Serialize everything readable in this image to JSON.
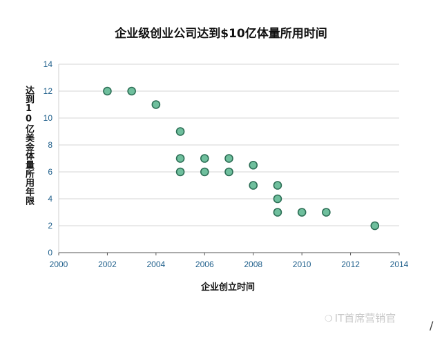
{
  "chart_data": {
    "type": "scatter",
    "title": "企业级创业公司达到$10亿体量所用时间",
    "xlabel": "企业创立时间",
    "ylabel": "达到10亿美金体量所用年限",
    "xlim": [
      2000,
      2014
    ],
    "ylim": [
      0,
      14
    ],
    "xticks": [
      2000,
      2002,
      2004,
      2006,
      2008,
      2010,
      2012,
      2014
    ],
    "yticks": [
      0,
      2,
      4,
      6,
      8,
      10,
      12,
      14
    ],
    "grid": "horizontal",
    "marker_color": "#6fbf9d",
    "marker_edge": "#2c6e55",
    "points": [
      {
        "x": 2002,
        "y": 12
      },
      {
        "x": 2003,
        "y": 12
      },
      {
        "x": 2004,
        "y": 11
      },
      {
        "x": 2005,
        "y": 9
      },
      {
        "x": 2005,
        "y": 7
      },
      {
        "x": 2005,
        "y": 6
      },
      {
        "x": 2006,
        "y": 7
      },
      {
        "x": 2006,
        "y": 6
      },
      {
        "x": 2007,
        "y": 7
      },
      {
        "x": 2007,
        "y": 6
      },
      {
        "x": 2008,
        "y": 6.5
      },
      {
        "x": 2008,
        "y": 5
      },
      {
        "x": 2009,
        "y": 5
      },
      {
        "x": 2009,
        "y": 4
      },
      {
        "x": 2009,
        "y": 3
      },
      {
        "x": 2010,
        "y": 3
      },
      {
        "x": 2011,
        "y": 3
      },
      {
        "x": 2013,
        "y": 2
      }
    ]
  },
  "watermark": {
    "text": "IT首席营销官",
    "icon": "wechat-icon"
  }
}
